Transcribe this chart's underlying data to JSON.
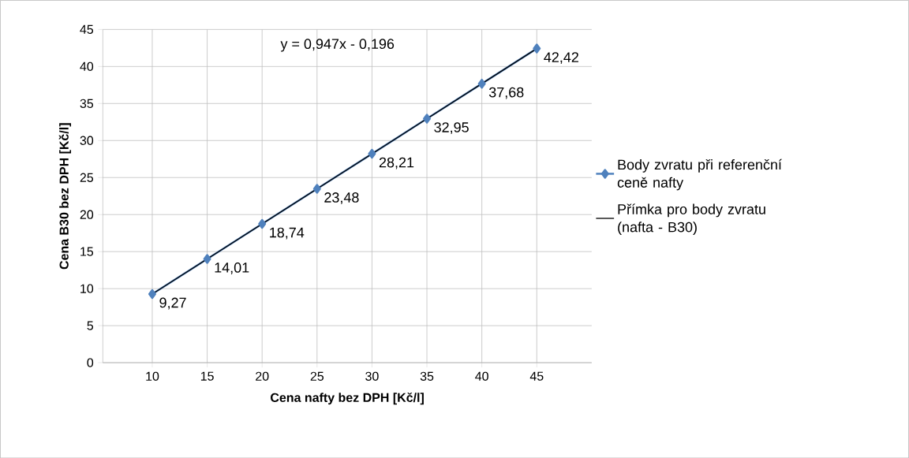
{
  "chart_data": {
    "type": "line",
    "xlabel": "Cena nafty bez DPH [Kč/l]",
    "ylabel": "Cena B30 bez DPH [Kč/l]",
    "xlim": [
      5.5,
      50
    ],
    "xticks": [
      10,
      15,
      20,
      25,
      30,
      35,
      40,
      45
    ],
    "ylim": [
      0,
      45
    ],
    "yticks": [
      0,
      5,
      10,
      15,
      20,
      25,
      30,
      35,
      40,
      45
    ],
    "grid": true,
    "legend": "right",
    "annotations": [
      "y = 0,947x - 0,196"
    ],
    "series": [
      {
        "name": "Body zvratu při referenční ceně nafty",
        "color": "#4f81bd",
        "marker": "diamond",
        "x": [
          10,
          15,
          20,
          25,
          30,
          35,
          40,
          45
        ],
        "values": [
          9.27,
          14.01,
          18.74,
          23.48,
          28.21,
          32.95,
          37.68,
          42.42
        ],
        "value_labels": [
          "9,27",
          "14,01",
          "18,74",
          "23,48",
          "28,21",
          "32,95",
          "37,68",
          "42,42"
        ]
      },
      {
        "name": "Přímka pro body zvratu (nafta - B30)",
        "color": "#000000",
        "marker": "none",
        "x": [
          10,
          45
        ],
        "values": [
          9.27,
          42.42
        ]
      }
    ]
  }
}
